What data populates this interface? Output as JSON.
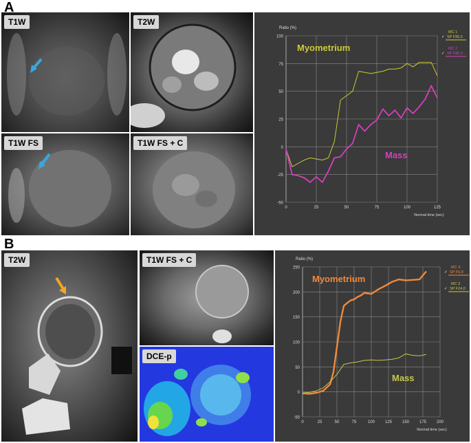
{
  "panel_a": {
    "letter": "A",
    "images": [
      {
        "label": "T1W"
      },
      {
        "label": "T2W"
      },
      {
        "label": "T1W FS"
      },
      {
        "label": "T1W FS + C"
      }
    ]
  },
  "panel_b": {
    "letter": "B",
    "images": [
      {
        "label": "T2W"
      },
      {
        "label": "T1W FS + C"
      },
      {
        "label": "DCE-p"
      }
    ]
  },
  "colors": {
    "chart_bg": "#3a3a3a",
    "grid": "#8a8a8a",
    "axis_text": "#dddddd",
    "a_myometrium": "#cccc33",
    "a_mass": "#d63fbf",
    "b_myometrium": "#f08a3c",
    "b_mass": "#c8c84a",
    "arrow_blue": "#3aa6e0",
    "arrow_orange": "#f5a623"
  },
  "chart_data": [
    {
      "type": "line",
      "panel": "A",
      "ylabel": "Ratio (%)",
      "xlabel": "Normal time (sec)",
      "xlim": [
        0,
        125
      ],
      "ylim": [
        -50,
        100
      ],
      "xticks": [
        "0",
        "25",
        "50",
        "75",
        "100",
        "125"
      ],
      "yticks": [
        "-50",
        "-25",
        "0",
        "25",
        "50",
        "75",
        "100"
      ],
      "legend": [
        {
          "line1": "MC 1",
          "line2": "SP F95,5"
        },
        {
          "line1": "MC 2",
          "line2": "SP F80,3"
        }
      ],
      "annotations": [
        "Myometrium",
        "Mass"
      ],
      "series": [
        {
          "name": "Myometrium",
          "x": [
            0,
            5,
            10,
            15,
            20,
            25,
            30,
            35,
            40,
            45,
            50,
            55,
            60,
            65,
            70,
            75,
            80,
            85,
            90,
            95,
            100,
            105,
            110,
            115,
            120,
            125
          ],
          "values": [
            -2,
            -18,
            -15,
            -12,
            -10,
            -11,
            -12,
            -10,
            5,
            42,
            46,
            50,
            68,
            67,
            66,
            67,
            68,
            70,
            70,
            71,
            75,
            72,
            76,
            76,
            76,
            64
          ]
        },
        {
          "name": "Mass",
          "x": [
            0,
            5,
            10,
            15,
            20,
            25,
            30,
            35,
            40,
            45,
            50,
            55,
            60,
            65,
            70,
            75,
            80,
            85,
            90,
            95,
            100,
            105,
            110,
            115,
            120,
            125
          ],
          "values": [
            -2,
            -25,
            -26,
            -28,
            -32,
            -27,
            -32,
            -22,
            -10,
            -9,
            -2,
            3,
            20,
            14,
            20,
            24,
            34,
            28,
            33,
            26,
            35,
            30,
            36,
            43,
            55,
            44
          ]
        }
      ]
    },
    {
      "type": "line",
      "panel": "B",
      "ylabel": "Ratio (%)",
      "xlabel": "Normal time (sec)",
      "xlim": [
        0,
        200
      ],
      "ylim": [
        -50,
        250
      ],
      "xticks": [
        "0",
        "25",
        "50",
        "75",
        "100",
        "125",
        "150",
        "175",
        "200"
      ],
      "yticks": [
        "-50",
        "0",
        "50",
        "100",
        "150",
        "200",
        "250"
      ],
      "legend": [
        {
          "line1": "MC 4",
          "line2": "SP F6,8"
        },
        {
          "line1": "MC 3",
          "line2": "SP F24,0"
        }
      ],
      "annotations": [
        "Myometrium",
        "Mass"
      ],
      "series": [
        {
          "name": "Myometrium",
          "x": [
            0,
            10,
            20,
            30,
            40,
            45,
            50,
            55,
            60,
            65,
            70,
            75,
            80,
            85,
            90,
            95,
            100,
            110,
            120,
            130,
            140,
            150,
            160,
            170,
            180
          ],
          "values": [
            -3,
            -4,
            -2,
            2,
            15,
            40,
            90,
            140,
            172,
            178,
            183,
            185,
            190,
            193,
            198,
            197,
            196,
            205,
            212,
            220,
            225,
            223,
            224,
            225,
            241
          ]
        },
        {
          "name": "Mass",
          "x": [
            0,
            10,
            20,
            30,
            40,
            50,
            60,
            70,
            80,
            90,
            100,
            110,
            120,
            130,
            140,
            150,
            160,
            170,
            180
          ],
          "values": [
            -2,
            -1,
            2,
            8,
            20,
            35,
            55,
            58,
            60,
            63,
            64,
            63,
            64,
            65,
            68,
            76,
            73,
            72,
            75
          ]
        }
      ]
    }
  ]
}
